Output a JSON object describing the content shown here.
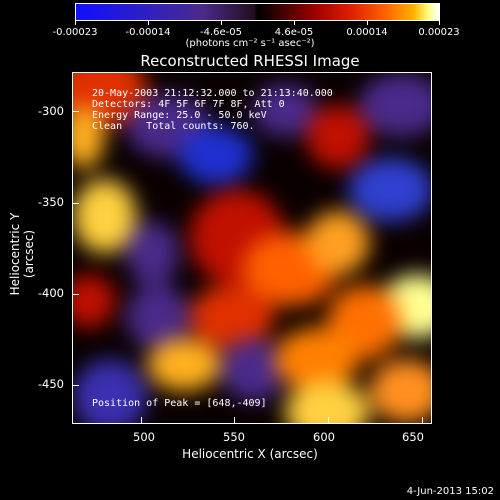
{
  "colorbar": {
    "ticks": [
      "-0.00023",
      "-0.00014",
      "-4.6e-05",
      "4.6e-05",
      "0.00014",
      "0.00023"
    ],
    "units": "(photons cm⁻² s⁻¹ asec⁻²)"
  },
  "title": "Reconstructed RHESSI Image",
  "annotations": {
    "time": "20-May-2003 21:12:32.000 to 21:13:40.000",
    "detectors": "Detectors: 4F 5F 6F 7F 8F, Att 0",
    "energy": "Energy Range: 25.0 - 50.0 keV",
    "clean": "Clean    Total counts: 760.",
    "peak": "Position of Peak = [648,-409]"
  },
  "axes": {
    "x_label": "Heliocentric X (arcsec)",
    "y_label": "Heliocentric Y (arcsec)",
    "x_ticks": [
      "500",
      "550",
      "600",
      "650"
    ],
    "y_ticks": [
      "-300",
      "-350",
      "-400",
      "-450"
    ],
    "x_range": [
      464,
      656
    ],
    "y_range": [
      -472,
      -280
    ]
  },
  "timestamp": "4-Jun-2013 15:02"
}
